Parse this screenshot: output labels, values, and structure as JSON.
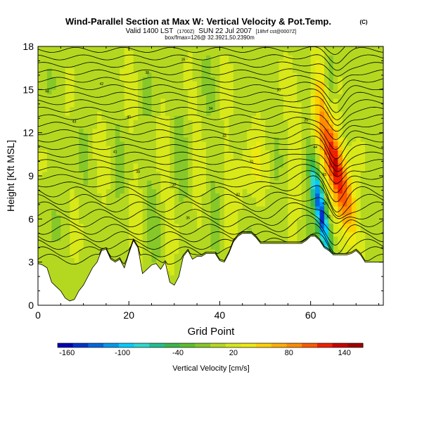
{
  "chart_data": {
    "type": "heatmap",
    "title": "Wind-Parallel Section at Max W: Vertical Velocity & Pot.Temp.",
    "title_unit": "(C)",
    "subtitle_valid": "Valid 1400 LST",
    "subtitle_time_small": "(1700Z)",
    "subtitle_date": "SUN 22 Jul 2007",
    "subtitle_source_small": "[18hrf cst@0007Z]",
    "subtitle_line2": "box/fmax=126@ 32.3921,50.2390m",
    "xlabel": "Grid Point",
    "ylabel": "Height [Kft MSL]",
    "xlim": [
      0,
      76
    ],
    "ylim": [
      0,
      18
    ],
    "x_ticks": [
      0,
      20,
      40,
      60
    ],
    "y_ticks": [
      0,
      3,
      6,
      9,
      12,
      15,
      18
    ],
    "colorbar": {
      "label": "Vertical Velocity [cm/s]",
      "min": -170,
      "max": 160,
      "tick_labels": [
        -160,
        -100,
        -40,
        20,
        80,
        140
      ],
      "colors": [
        "#0000b4",
        "#0033cc",
        "#0066e0",
        "#0099f0",
        "#00ccff",
        "#2ed8d0",
        "#22c090",
        "#3ab84a",
        "#5cc030",
        "#86c828",
        "#b4d820",
        "#d8e818",
        "#eeea10",
        "#ffd000",
        "#ffb000",
        "#ff8c00",
        "#ff5a00",
        "#f02000",
        "#c80000",
        "#a00000"
      ]
    },
    "contour_labels": [
      "44",
      "43",
      "42",
      "41",
      "40",
      "39",
      "38",
      "37",
      "36",
      "35",
      "34",
      "33",
      "32",
      "31",
      "30",
      "29"
    ],
    "terrain_kft": [
      2.9,
      2.8,
      2.6,
      1.6,
      1.3,
      1.0,
      0.5,
      0.3,
      0.4,
      1.0,
      1.4,
      2.0,
      2.6,
      3.0,
      3.8,
      3.9,
      3.2,
      3.0,
      3.2,
      2.6,
      3.6,
      4.5,
      4.0,
      2.2,
      2.5,
      2.8,
      2.9,
      2.5,
      3.0,
      1.6,
      1.4,
      2.0,
      3.4,
      3.8,
      3.2,
      3.4,
      3.4,
      3.6,
      3.6,
      3.6,
      3.1,
      3.0,
      3.6,
      4.4,
      4.8,
      5.0,
      5.0,
      5.0,
      4.7,
      4.3,
      4.3,
      4.3,
      4.3,
      4.3,
      4.3,
      4.3,
      4.3,
      4.3,
      4.3,
      4.5,
      4.8,
      4.8,
      4.5,
      4.0,
      3.8,
      3.5,
      3.5,
      3.5,
      3.5,
      3.6,
      3.8,
      3.5,
      3.0,
      3.0,
      3.0,
      3.0,
      3.0
    ],
    "w_field_cm_s": "varying; max approx 126 near grid 66-70 at 8-10 Kft, min approx -130 near grid 61-64 at 5-9 Kft"
  }
}
